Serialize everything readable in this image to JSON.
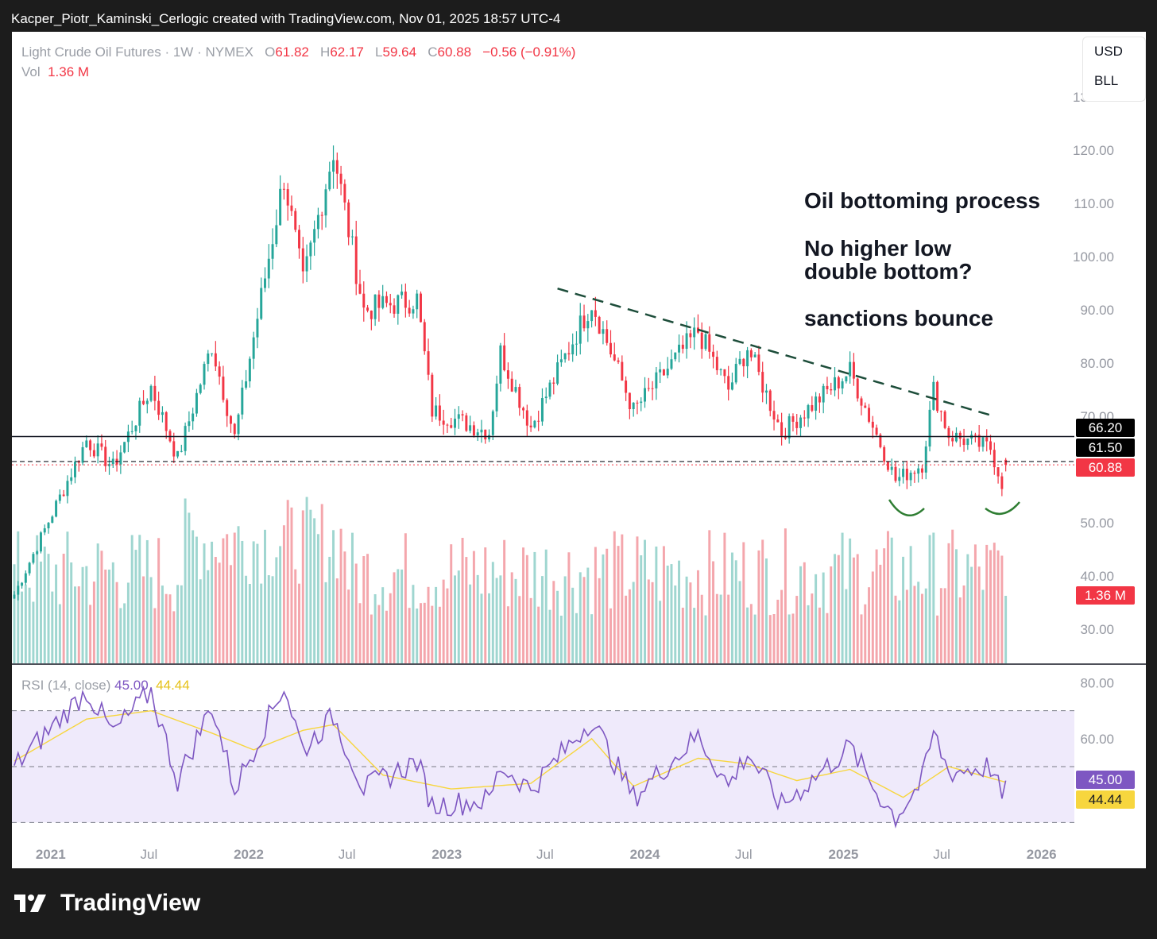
{
  "header": {
    "attribution": "Kacper_Piotr_Kaminski_Cerlogic created with TradingView.com, Nov 01, 2025 18:57 UTC-4"
  },
  "legend": {
    "symbol": "Light Crude Oil Futures · 1W · NYMEX",
    "o_label": "O",
    "o_value": "61.82",
    "h_label": "H",
    "h_value": "62.17",
    "l_label": "L",
    "l_value": "59.64",
    "c_label": "C",
    "c_value": "60.88",
    "change": "−0.56 (−0.91%)",
    "vol_label": "Vol",
    "vol_value": "1.36 M"
  },
  "currency_box": {
    "currency": "USD",
    "unit": "BLL"
  },
  "annotations": {
    "line1": "Oil bottoming process",
    "line2": "No higher low",
    "line3": "double bottom?",
    "line4": "sanctions bounce"
  },
  "price_tags": {
    "level_upper": "66.20",
    "level_lower": "61.50",
    "last_close": "60.88",
    "volume": "1.36 M"
  },
  "rsi": {
    "label": "RSI (14, close)",
    "value": "45.00",
    "ma_value": "44.44",
    "tag_value": "45.00",
    "tag_ma": "44.44"
  },
  "footer": {
    "brand": "TradingView"
  },
  "colors": {
    "up": "#26a69a",
    "down": "#f23645",
    "up_volume": "#9fd6d0",
    "down_volume": "#f4a6ac",
    "rsi_line": "#7e57c2",
    "rsi_ma": "#f7d63e",
    "rsi_band": "#efeafb",
    "trendline": "#1d4d3a",
    "smile": "#2e7d32"
  },
  "chart_data": [
    {
      "type": "candlestick",
      "title": "Light Crude Oil Futures · 1W · NYMEX",
      "ylim": [
        25,
        130
      ],
      "y_ticks": [
        "30.00",
        "40.00",
        "50.00",
        "60.00",
        "70.00",
        "80.00",
        "90.00",
        "100.00",
        "110.00",
        "120.00",
        "130.00"
      ],
      "x_ticks": [
        "2021",
        "Jul",
        "2022",
        "Jul",
        "2023",
        "Jul",
        "2024",
        "Jul",
        "2025",
        "Jul",
        "2026"
      ],
      "anchors": [
        {
          "date": "2020-10-26",
          "price": 36.5
        },
        {
          "date": "2021-03-08",
          "price": 65.5
        },
        {
          "date": "2021-04-26",
          "price": 60.5
        },
        {
          "date": "2021-07-05",
          "price": 75.5
        },
        {
          "date": "2021-08-23",
          "price": 62.0
        },
        {
          "date": "2021-10-25",
          "price": 83.5
        },
        {
          "date": "2021-12-06",
          "price": 66.0
        },
        {
          "date": "2022-03-07",
          "price": 115.0
        },
        {
          "date": "2022-04-11",
          "price": 95.0
        },
        {
          "date": "2022-06-06",
          "price": 120.0
        },
        {
          "date": "2022-08-01",
          "price": 90.0
        },
        {
          "date": "2022-11-07",
          "price": 92.0
        },
        {
          "date": "2022-12-05",
          "price": 71.0
        },
        {
          "date": "2023-03-20",
          "price": 67.0
        },
        {
          "date": "2023-04-10",
          "price": 82.0
        },
        {
          "date": "2023-06-05",
          "price": 68.0
        },
        {
          "date": "2023-09-25",
          "price": 91.5
        },
        {
          "date": "2023-12-11",
          "price": 71.0
        },
        {
          "date": "2024-04-08",
          "price": 86.0
        },
        {
          "date": "2024-06-03",
          "price": 75.0
        },
        {
          "date": "2024-07-08",
          "price": 83.0
        },
        {
          "date": "2024-09-09",
          "price": 67.0
        },
        {
          "date": "2025-01-13",
          "price": 78.5
        },
        {
          "date": "2025-03-03",
          "price": 66.5
        },
        {
          "date": "2025-04-07",
          "price": 58.0
        },
        {
          "date": "2025-05-26",
          "price": 61.0
        },
        {
          "date": "2025-06-16",
          "price": 75.0
        },
        {
          "date": "2025-07-14",
          "price": 66.5
        },
        {
          "date": "2025-09-29",
          "price": 64.0
        },
        {
          "date": "2025-10-20",
          "price": 57.5
        },
        {
          "date": "2025-10-27",
          "price": 60.88
        }
      ],
      "last_bar": {
        "open": 61.82,
        "high": 62.17,
        "low": 59.64,
        "close": 60.88,
        "volume": "1.36 M"
      },
      "horizontal_levels": [
        66.2,
        61.5
      ],
      "last_price_line": 60.88,
      "trendline": [
        {
          "date": "2023-07-24",
          "price": 94.0
        },
        {
          "date": "2025-10-06",
          "price": 70.0
        }
      ]
    },
    {
      "type": "line",
      "title": "RSI (14, close)",
      "ylim": [
        30,
        80
      ],
      "y_ticks": [
        "60.00",
        "80.00"
      ],
      "bands": [
        70,
        50,
        30
      ],
      "series": [
        {
          "name": "RSI (14, close)",
          "anchors": [
            {
              "date": "2020-10-26",
              "value": 50
            },
            {
              "date": "2021-03-08",
              "value": 77
            },
            {
              "date": "2021-04-26",
              "value": 62
            },
            {
              "date": "2021-07-05",
              "value": 77
            },
            {
              "date": "2021-08-23",
              "value": 45
            },
            {
              "date": "2021-10-25",
              "value": 72
            },
            {
              "date": "2021-12-06",
              "value": 42
            },
            {
              "date": "2022-03-07",
              "value": 79
            },
            {
              "date": "2022-04-11",
              "value": 56
            },
            {
              "date": "2022-06-06",
              "value": 68
            },
            {
              "date": "2022-08-01",
              "value": 42
            },
            {
              "date": "2022-11-07",
              "value": 52
            },
            {
              "date": "2022-12-05",
              "value": 36
            },
            {
              "date": "2023-03-20",
              "value": 38
            },
            {
              "date": "2023-04-10",
              "value": 50
            },
            {
              "date": "2023-06-05",
              "value": 42
            },
            {
              "date": "2023-09-25",
              "value": 67
            },
            {
              "date": "2023-12-11",
              "value": 39
            },
            {
              "date": "2024-04-08",
              "value": 61
            },
            {
              "date": "2024-06-03",
              "value": 43
            },
            {
              "date": "2024-07-08",
              "value": 55
            },
            {
              "date": "2024-09-09",
              "value": 36
            },
            {
              "date": "2025-01-13",
              "value": 57
            },
            {
              "date": "2025-03-03",
              "value": 41
            },
            {
              "date": "2025-04-07",
              "value": 32
            },
            {
              "date": "2025-05-26",
              "value": 45
            },
            {
              "date": "2025-06-16",
              "value": 62
            },
            {
              "date": "2025-07-14",
              "value": 48
            },
            {
              "date": "2025-09-29",
              "value": 50
            },
            {
              "date": "2025-10-20",
              "value": 39
            },
            {
              "date": "2025-10-27",
              "value": 45.0
            }
          ]
        },
        {
          "name": "RSI-based MA",
          "anchors": [
            {
              "date": "2020-10-26",
              "value": 52
            },
            {
              "date": "2021-03-08",
              "value": 67
            },
            {
              "date": "2021-07-05",
              "value": 70
            },
            {
              "date": "2021-10-25",
              "value": 62
            },
            {
              "date": "2022-01-10",
              "value": 56
            },
            {
              "date": "2022-04-11",
              "value": 63
            },
            {
              "date": "2022-06-06",
              "value": 65
            },
            {
              "date": "2022-09-05",
              "value": 47
            },
            {
              "date": "2023-01-09",
              "value": 42
            },
            {
              "date": "2023-06-05",
              "value": 44
            },
            {
              "date": "2023-09-25",
              "value": 60
            },
            {
              "date": "2023-12-11",
              "value": 43
            },
            {
              "date": "2024-04-08",
              "value": 53
            },
            {
              "date": "2024-07-08",
              "value": 51
            },
            {
              "date": "2024-10-07",
              "value": 45
            },
            {
              "date": "2025-01-13",
              "value": 49
            },
            {
              "date": "2025-04-21",
              "value": 39
            },
            {
              "date": "2025-07-14",
              "value": 50
            },
            {
              "date": "2025-10-27",
              "value": 44.44
            }
          ]
        }
      ]
    }
  ]
}
